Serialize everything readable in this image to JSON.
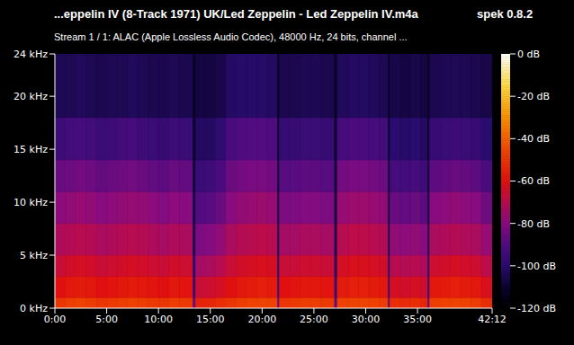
{
  "chart_data": {
    "type": "heatmap",
    "title": "...eppelin IV (8-Track 1971) UK/Led Zeppelin - Led Zeppelin IV.m4a",
    "subtitle": "Stream 1 / 1: ALAC (Apple Lossless Audio Codec), 48000 Hz, 24 bits, channel ...",
    "annotations": [
      "spek 0.8.2"
    ],
    "xlim": [
      0,
      2532
    ],
    "xticks": [
      {
        "value": 0,
        "label": "0:00"
      },
      {
        "value": 300,
        "label": "5:00"
      },
      {
        "value": 600,
        "label": "10:00"
      },
      {
        "value": 900,
        "label": "15:00"
      },
      {
        "value": 1200,
        "label": "20:00"
      },
      {
        "value": 1500,
        "label": "25:00"
      },
      {
        "value": 1800,
        "label": "30:00"
      },
      {
        "value": 2100,
        "label": "35:00"
      },
      {
        "value": 2532,
        "label": "42:12"
      }
    ],
    "ylim": [
      0,
      24
    ],
    "yticks": [
      {
        "value": 0,
        "label": "0 kHz"
      },
      {
        "value": 5,
        "label": "5 kHz"
      },
      {
        "value": 10,
        "label": "10 kHz"
      },
      {
        "value": 15,
        "label": "15 kHz"
      },
      {
        "value": 20,
        "label": "20 kHz"
      },
      {
        "value": 24,
        "label": "24 kHz"
      }
    ],
    "x_edges": [
      0,
      60,
      120,
      180,
      240,
      300,
      360,
      420,
      480,
      540,
      600,
      660,
      720,
      800,
      815,
      870,
      930,
      990,
      1050,
      1110,
      1170,
      1230,
      1290,
      1300,
      1360,
      1420,
      1480,
      1540,
      1620,
      1635,
      1700,
      1760,
      1820,
      1880,
      1930,
      1940,
      2000,
      2060,
      2120,
      2160,
      2170,
      2230,
      2290,
      2350,
      2410,
      2470,
      2532
    ],
    "y_edges": [
      0,
      1,
      3,
      5,
      8,
      11,
      14,
      18,
      24
    ],
    "cells": [
      [
        -50,
        -48,
        -47,
        -48,
        -50,
        -49,
        -48,
        -47,
        -48,
        -49,
        -50,
        -48,
        -49,
        -85,
        -55,
        -54,
        -52,
        -50,
        -48,
        -47,
        -46,
        -47,
        -85,
        -50,
        -49,
        -48,
        -48,
        -49,
        -88,
        -47,
        -46,
        -46,
        -47,
        -48,
        -85,
        -52,
        -53,
        -52,
        -54,
        -86,
        -48,
        -47,
        -46,
        -47,
        -48,
        -52
      ],
      [
        -60,
        -58,
        -57,
        -58,
        -60,
        -59,
        -58,
        -57,
        -58,
        -59,
        -60,
        -58,
        -59,
        -95,
        -66,
        -65,
        -63,
        -60,
        -58,
        -57,
        -56,
        -57,
        -95,
        -60,
        -59,
        -58,
        -58,
        -59,
        -97,
        -57,
        -56,
        -56,
        -57,
        -58,
        -95,
        -63,
        -64,
        -63,
        -65,
        -96,
        -58,
        -57,
        -56,
        -57,
        -58,
        -62
      ],
      [
        -66,
        -64,
        -63,
        -64,
        -66,
        -65,
        -64,
        -63,
        -64,
        -65,
        -66,
        -64,
        -65,
        -100,
        -74,
        -73,
        -70,
        -66,
        -64,
        -63,
        -62,
        -63,
        -100,
        -66,
        -66,
        -65,
        -65,
        -66,
        -102,
        -63,
        -62,
        -62,
        -63,
        -64,
        -100,
        -70,
        -71,
        -70,
        -72,
        -101,
        -65,
        -64,
        -63,
        -64,
        -65,
        -69
      ],
      [
        -72,
        -71,
        -70,
        -71,
        -73,
        -72,
        -71,
        -70,
        -71,
        -72,
        -74,
        -72,
        -73,
        -104,
        -82,
        -81,
        -78,
        -73,
        -71,
        -70,
        -69,
        -70,
        -104,
        -74,
        -74,
        -73,
        -73,
        -74,
        -105,
        -70,
        -69,
        -69,
        -70,
        -71,
        -104,
        -78,
        -79,
        -78,
        -80,
        -105,
        -73,
        -72,
        -71,
        -72,
        -73,
        -77
      ],
      [
        -79,
        -78,
        -77,
        -78,
        -80,
        -79,
        -78,
        -77,
        -78,
        -79,
        -81,
        -79,
        -80,
        -107,
        -90,
        -89,
        -86,
        -80,
        -78,
        -77,
        -76,
        -77,
        -107,
        -82,
        -82,
        -81,
        -81,
        -82,
        -108,
        -77,
        -76,
        -76,
        -77,
        -78,
        -107,
        -86,
        -87,
        -86,
        -88,
        -108,
        -80,
        -79,
        -78,
        -79,
        -80,
        -85
      ],
      [
        -86,
        -85,
        -84,
        -85,
        -87,
        -86,
        -85,
        -84,
        -86,
        -87,
        -88,
        -86,
        -87,
        -108,
        -96,
        -95,
        -92,
        -86,
        -84,
        -83,
        -83,
        -84,
        -108,
        -89,
        -89,
        -88,
        -88,
        -89,
        -109,
        -84,
        -83,
        -83,
        -84,
        -85,
        -108,
        -93,
        -94,
        -93,
        -95,
        -109,
        -88,
        -87,
        -86,
        -87,
        -88,
        -92
      ],
      [
        -95,
        -94,
        -93,
        -94,
        -96,
        -95,
        -94,
        -93,
        -95,
        -96,
        -97,
        -95,
        -96,
        -110,
        -102,
        -102,
        -99,
        -92,
        -91,
        -90,
        -90,
        -91,
        -110,
        -97,
        -97,
        -96,
        -96,
        -97,
        -111,
        -93,
        -92,
        -92,
        -93,
        -94,
        -110,
        -100,
        -101,
        -100,
        -102,
        -111,
        -97,
        -96,
        -95,
        -96,
        -97,
        -100
      ],
      [
        -104,
        -104,
        -103,
        -104,
        -105,
        -104,
        -104,
        -103,
        -104,
        -105,
        -105,
        -104,
        -105,
        -112,
        -107,
        -107,
        -106,
        -102,
        -101,
        -101,
        -101,
        -102,
        -112,
        -105,
        -105,
        -104,
        -104,
        -105,
        -113,
        -103,
        -102,
        -102,
        -103,
        -104,
        -112,
        -106,
        -107,
        -106,
        -107,
        -113,
        -105,
        -104,
        -104,
        -104,
        -105,
        -106
      ]
    ],
    "colorbar": {
      "range": [
        -120,
        0
      ],
      "ticks": [
        {
          "value": 0,
          "label": "0 dB"
        },
        {
          "value": -20,
          "label": "-20 dB"
        },
        {
          "value": -40,
          "label": "-40 dB"
        },
        {
          "value": -60,
          "label": "-60 dB"
        },
        {
          "value": -80,
          "label": "-80 dB"
        },
        {
          "value": -100,
          "label": "-100 dB"
        },
        {
          "value": -120,
          "label": "-120 dB"
        }
      ]
    }
  }
}
